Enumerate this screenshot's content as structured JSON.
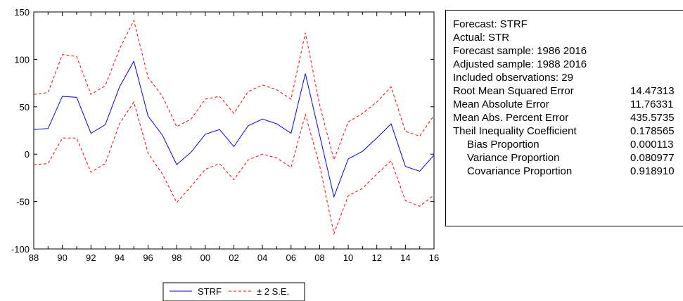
{
  "chart_data": {
    "type": "line",
    "title": "",
    "xlabel": "",
    "ylabel": "",
    "ylim": [
      -100,
      150
    ],
    "yticks": [
      -100,
      -50,
      0,
      50,
      100,
      150
    ],
    "x": [
      1988,
      1989,
      1990,
      1991,
      1992,
      1993,
      1994,
      1995,
      1996,
      1997,
      1998,
      1999,
      2000,
      2001,
      2002,
      2003,
      2004,
      2005,
      2006,
      2007,
      2008,
      2009,
      2010,
      2011,
      2012,
      2013,
      2014,
      2015,
      2016
    ],
    "xtick_labels": [
      "88",
      "90",
      "92",
      "94",
      "96",
      "98",
      "00",
      "02",
      "04",
      "06",
      "08",
      "10",
      "12",
      "14",
      "16"
    ],
    "series": [
      {
        "name": "STRF",
        "color": "#0000ff",
        "style": "solid",
        "values": [
          26,
          27,
          61,
          60,
          22,
          31,
          71,
          98,
          40,
          20,
          -11,
          2,
          21,
          26,
          8,
          30,
          37,
          32,
          22,
          85,
          20,
          -45,
          -5,
          3,
          17,
          32,
          -13,
          -18,
          -1
        ]
      },
      {
        "name": "± 2 S.E.",
        "color": "#ff0000",
        "style": "dashed",
        "role": "upper",
        "values": [
          63,
          65,
          105,
          103,
          63,
          72,
          111,
          141,
          81,
          61,
          29,
          37,
          58,
          61,
          43,
          66,
          73,
          68,
          58,
          128,
          52,
          -6,
          34,
          43,
          55,
          71,
          24,
          19,
          41
        ]
      },
      {
        "name": "± 2 S.E.",
        "color": "#ff0000",
        "style": "dashed",
        "role": "lower",
        "values": [
          -11,
          -10,
          17,
          17,
          -19,
          -10,
          32,
          55,
          1,
          -21,
          -51,
          -34,
          -16,
          -10,
          -27,
          -6,
          0,
          -4,
          -14,
          42,
          -12,
          -84,
          -44,
          -36,
          -21,
          -7,
          -49,
          -55,
          -43
        ]
      }
    ],
    "legend": {
      "position": "bottom-center",
      "entries": [
        {
          "label": "STRF",
          "color": "#0000ff",
          "style": "solid"
        },
        {
          "label": "± 2 S.E.",
          "color": "#ff0000",
          "style": "dashed"
        }
      ]
    }
  },
  "stats": {
    "lines": [
      {
        "label": "Forecast: STRF"
      },
      {
        "label": "Actual: STR"
      },
      {
        "label": "Forecast sample: 1986 2016"
      },
      {
        "label": "Adjusted sample: 1988 2016"
      },
      {
        "label": "Included observations: 29"
      },
      {
        "label": "Root Mean Squared Error",
        "value": "14.47313"
      },
      {
        "label": "Mean Absolute Error",
        "value": "11.76331"
      },
      {
        "label": "Mean Abs. Percent Error",
        "value": "435.5735"
      },
      {
        "label": "Theil Inequality Coefficient",
        "value": "0.178565"
      },
      {
        "label": "Bias Proportion",
        "value": "0.000113",
        "indent": true
      },
      {
        "label": "Variance Proportion",
        "value": "0.080977",
        "indent": true
      },
      {
        "label": "Covariance Proportion",
        "value": "0.918910",
        "indent": true
      }
    ]
  }
}
